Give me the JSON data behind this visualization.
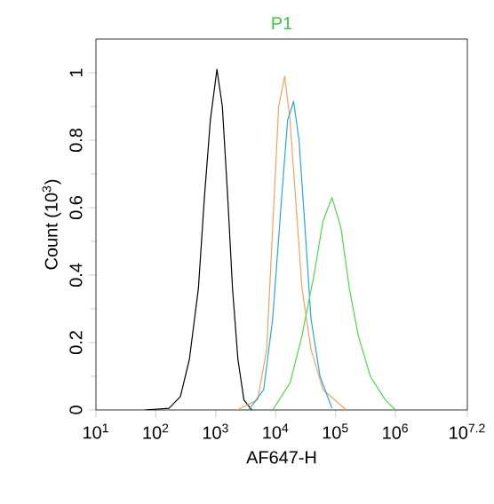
{
  "chart_data": {
    "type": "line",
    "title": "P1",
    "xlabel": "AF647-H",
    "ylabel": "Count (10$^{3}$)",
    "log": "x",
    "grid": false,
    "marker": "none",
    "line_style": "solid",
    "xlim": [
      10,
      15848932
    ],
    "ylim": [
      0,
      1.1
    ],
    "xticks": [
      {
        "value": 10,
        "label": "10$^{1}$"
      },
      {
        "value": 100,
        "label": "10$^{2}$"
      },
      {
        "value": 1000,
        "label": "10$^{3}$"
      },
      {
        "value": 10000,
        "label": "10$^{4}$"
      },
      {
        "value": 100000,
        "label": "10$^{5}$"
      },
      {
        "value": 1000000,
        "label": "10$^{6}$"
      },
      {
        "value": 15848932,
        "label": "10$^{7.2}$"
      }
    ],
    "yticks": [
      0,
      0.2,
      0.4,
      0.6,
      0.8,
      1
    ],
    "series": [
      {
        "color": "#000000",
        "x": [
          66,
          166,
          257,
          363,
          513,
          646,
          813,
          1047,
          1288,
          1585,
          1905,
          2344,
          2951,
          3981
        ],
        "values": [
          0,
          0.005,
          0.04,
          0.15,
          0.36,
          0.63,
          0.86,
          1.01,
          0.9,
          0.63,
          0.36,
          0.15,
          0.03,
          0
        ]
      },
      {
        "color": "#f5a060",
        "x": [
          2239,
          5012,
          7079,
          8913,
          11220,
          14125,
          17378,
          21878,
          27542,
          38905,
          61660,
          151356
        ],
        "values": [
          0,
          0.03,
          0.18,
          0.54,
          0.9,
          0.99,
          0.86,
          0.61,
          0.36,
          0.18,
          0.06,
          0
        ]
      },
      {
        "color": "#29a8d8",
        "x": [
          3548,
          6310,
          8913,
          12589,
          15849,
          19953,
          24547,
          30903,
          38905,
          54954,
          87096
        ],
        "values": [
          0,
          0.06,
          0.27,
          0.63,
          0.86,
          0.915,
          0.8,
          0.54,
          0.27,
          0.1,
          0.005
        ]
      },
      {
        "color": "#4cd94c",
        "x": [
          8913,
          17378,
          27542,
          43652,
          61660,
          87096,
          123027,
          169824,
          239883,
          380189,
          676083,
          1000000
        ],
        "values": [
          0,
          0.08,
          0.22,
          0.4,
          0.56,
          0.63,
          0.54,
          0.36,
          0.22,
          0.1,
          0.03,
          0
        ]
      }
    ]
  }
}
